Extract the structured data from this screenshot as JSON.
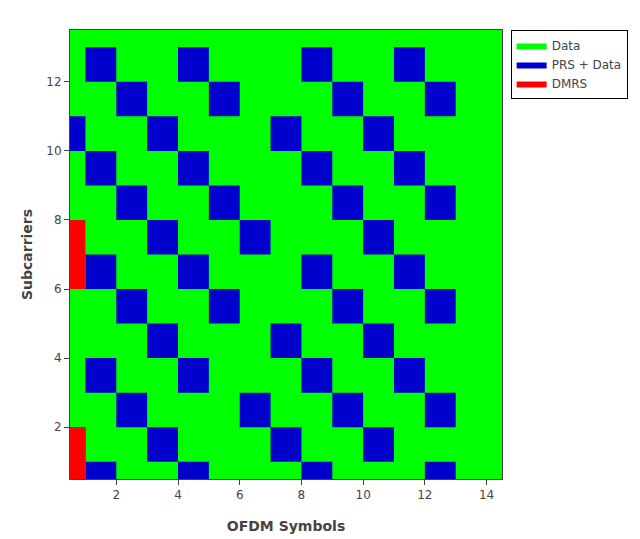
{
  "chart_data": {
    "type": "heatmap",
    "xlabel": "OFDM Symbols",
    "ylabel": "Subcarriers",
    "xlim": [
      0.5,
      14.5
    ],
    "ylim": [
      0.5,
      13.5
    ],
    "xticks": [
      2,
      4,
      6,
      8,
      10,
      12,
      14
    ],
    "yticks": [
      2,
      4,
      6,
      8,
      10,
      12
    ],
    "grid": false,
    "legend": "upper right",
    "series": [
      {
        "name": "Data",
        "color": "#00FF00"
      },
      {
        "name": "PRS + Data",
        "color": "#0000CD",
        "cells": [
          [
            1,
            2
          ],
          [
            1,
            5
          ],
          [
            1,
            9
          ],
          [
            1,
            13
          ],
          [
            2,
            1
          ],
          [
            2,
            4
          ],
          [
            2,
            8
          ],
          [
            2,
            11
          ],
          [
            3,
            3
          ],
          [
            3,
            7
          ],
          [
            3,
            10
          ],
          [
            3,
            13
          ],
          [
            4,
            2
          ],
          [
            4,
            5
          ],
          [
            4,
            9
          ],
          [
            4,
            12
          ],
          [
            5,
            4
          ],
          [
            5,
            8
          ],
          [
            5,
            11
          ],
          [
            6,
            3
          ],
          [
            6,
            6
          ],
          [
            6,
            10
          ],
          [
            6,
            13
          ],
          [
            7,
            2
          ],
          [
            7,
            5
          ],
          [
            7,
            9
          ],
          [
            7,
            12
          ],
          [
            8,
            4
          ],
          [
            8,
            7
          ],
          [
            8,
            11
          ],
          [
            9,
            3
          ],
          [
            9,
            6
          ],
          [
            9,
            10
          ],
          [
            9,
            13
          ],
          [
            10,
            2
          ],
          [
            10,
            5
          ],
          [
            10,
            9
          ],
          [
            10,
            12
          ],
          [
            11,
            1
          ],
          [
            11,
            4
          ],
          [
            11,
            8
          ],
          [
            11,
            11
          ],
          [
            12,
            3
          ],
          [
            12,
            6
          ],
          [
            12,
            10
          ],
          [
            12,
            13
          ],
          [
            13,
            2
          ],
          [
            13,
            5
          ],
          [
            13,
            9
          ],
          [
            13,
            12
          ]
        ]
      },
      {
        "name": "DMRS",
        "color": "#FF0000",
        "cells": [
          [
            1,
            1
          ],
          [
            2,
            1
          ],
          [
            7,
            1
          ],
          [
            8,
            1
          ]
        ]
      }
    ]
  }
}
